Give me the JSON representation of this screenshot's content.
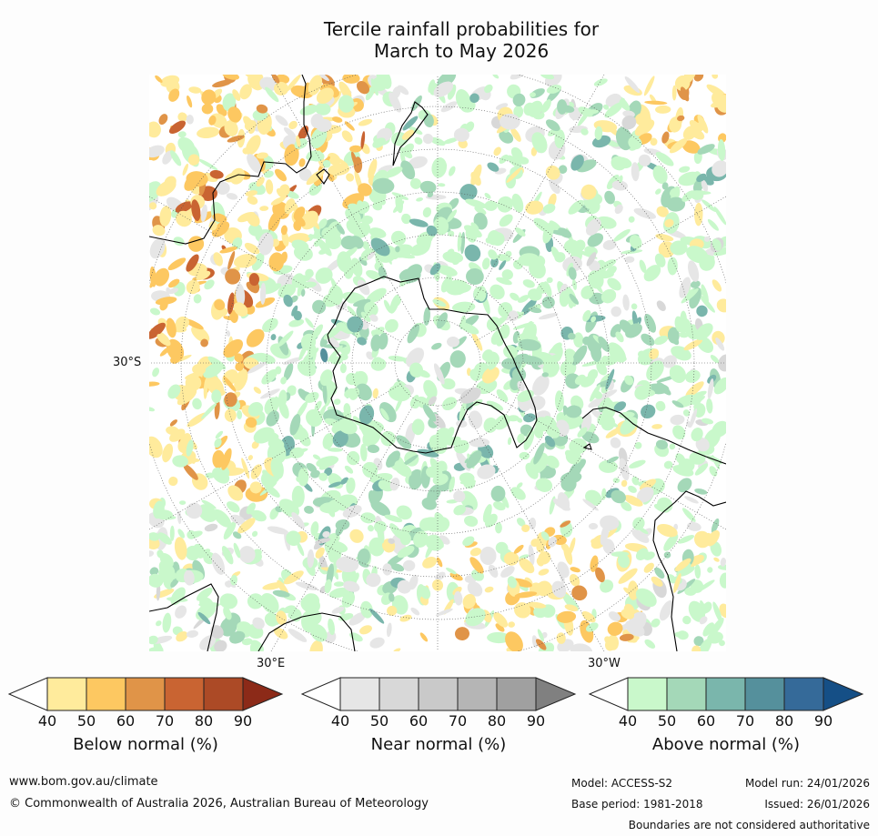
{
  "title_line1": "Tercile rainfall probabilities for",
  "title_line2": "March to May 2026",
  "map": {
    "lat_label": "30°S",
    "lon_label_east": "30°E",
    "lon_label_west": "30°W",
    "legend_colors": {
      "below": [
        "#ffffff",
        "#ffeb9c",
        "#fdc861",
        "#e09448",
        "#c96432",
        "#ac4a26",
        "#8c2a18"
      ],
      "near": [
        "#ffffff",
        "#e6e6e6",
        "#d8d8d8",
        "#c9c9c9",
        "#b5b5b5",
        "#a0a0a0",
        "#808080"
      ],
      "above": [
        "#ffffff",
        "#c9f8cb",
        "#a4d8b8",
        "#7ab6ac",
        "#55909c",
        "#356a99",
        "#154f86"
      ]
    }
  },
  "colorbars": [
    {
      "label": "Below normal (%)",
      "ticks": [
        "40",
        "50",
        "60",
        "70",
        "80",
        "90"
      ]
    },
    {
      "label": "Near normal (%)",
      "ticks": [
        "40",
        "50",
        "60",
        "70",
        "80",
        "90"
      ]
    },
    {
      "label": "Above normal (%)",
      "ticks": [
        "40",
        "50",
        "60",
        "70",
        "80",
        "90"
      ]
    }
  ],
  "footer": {
    "url": "www.bom.gov.au/climate",
    "copyright": "© Commonwealth of Australia 2026, Australian Bureau of Meteorology",
    "model": "Model: ACCESS-S2",
    "model_run": "Model run: 24/01/2026",
    "base_period": "Base period: 1981-2018",
    "issued": "Issued: 26/01/2026",
    "disclaimer": "Boundaries are not considered authoritative"
  }
}
